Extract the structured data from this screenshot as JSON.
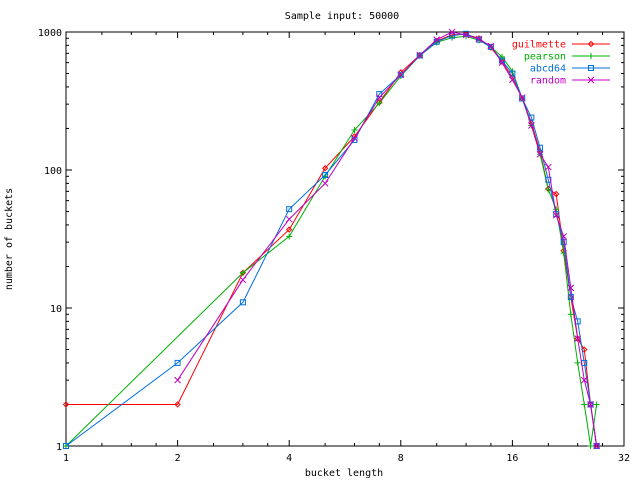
{
  "chart_data": {
    "type": "line",
    "title": "Sample input: 50000",
    "xlabel": "bucket length",
    "ylabel": "number of buckets",
    "xscale": "log2",
    "yscale": "log10",
    "xlim": [
      1,
      32
    ],
    "ylim": [
      1,
      1000
    ],
    "xticks": [
      1,
      2,
      4,
      8,
      16,
      32
    ],
    "xtick_labels": [
      "1",
      "2",
      "4",
      "8",
      "16",
      "32"
    ],
    "yticks": [
      1,
      10,
      100,
      1000
    ],
    "ytick_labels": [
      "1",
      "10",
      "100",
      "1000"
    ],
    "grid": false,
    "legend_position": "top-right",
    "series": [
      {
        "name": "guilmette",
        "color": "#ff0000",
        "marker": "diamond",
        "points": [
          [
            1,
            2
          ],
          [
            2,
            2
          ],
          [
            3,
            18
          ],
          [
            4,
            37
          ],
          [
            5,
            103
          ],
          [
            6,
            175
          ],
          [
            7,
            310
          ],
          [
            8,
            510
          ],
          [
            9,
            680
          ],
          [
            10,
            860
          ],
          [
            11,
            955
          ],
          [
            12,
            960
          ],
          [
            13,
            900
          ],
          [
            14,
            770
          ],
          [
            15,
            610
          ],
          [
            16,
            470
          ],
          [
            17,
            330
          ],
          [
            18,
            220
          ],
          [
            19,
            135
          ],
          [
            20,
            73
          ],
          [
            21,
            67
          ],
          [
            22,
            26
          ],
          [
            23,
            12
          ],
          [
            24,
            6
          ],
          [
            25,
            5
          ],
          [
            26,
            2
          ],
          [
            27,
            1
          ]
        ]
      },
      {
        "name": "pearson",
        "color": "#00b000",
        "marker": "plus",
        "points": [
          [
            1,
            1
          ],
          [
            3,
            18
          ],
          [
            4,
            33
          ],
          [
            5,
            90
          ],
          [
            6,
            195
          ],
          [
            7,
            305
          ],
          [
            8,
            480
          ],
          [
            9,
            675
          ],
          [
            10,
            840
          ],
          [
            11,
            910
          ],
          [
            12,
            930
          ],
          [
            13,
            870
          ],
          [
            14,
            780
          ],
          [
            15,
            660
          ],
          [
            16,
            520
          ],
          [
            17,
            330
          ],
          [
            18,
            210
          ],
          [
            19,
            130
          ],
          [
            20,
            72
          ],
          [
            21,
            52
          ],
          [
            22,
            25
          ],
          [
            23,
            9
          ],
          [
            24,
            4
          ],
          [
            25,
            2
          ],
          [
            26,
            1
          ],
          [
            27,
            2
          ]
        ]
      },
      {
        "name": "abcd64",
        "color": "#0070e0",
        "marker": "square",
        "points": [
          [
            1,
            1
          ],
          [
            2,
            4
          ],
          [
            3,
            11
          ],
          [
            4,
            52
          ],
          [
            5,
            92
          ],
          [
            6,
            165
          ],
          [
            7,
            355
          ],
          [
            8,
            490
          ],
          [
            9,
            675
          ],
          [
            10,
            850
          ],
          [
            11,
            940
          ],
          [
            12,
            970
          ],
          [
            13,
            880
          ],
          [
            14,
            780
          ],
          [
            15,
            620
          ],
          [
            16,
            500
          ],
          [
            17,
            330
          ],
          [
            18,
            240
          ],
          [
            19,
            145
          ],
          [
            20,
            85
          ],
          [
            21,
            48
          ],
          [
            22,
            30
          ],
          [
            23,
            12
          ],
          [
            24,
            8
          ],
          [
            25,
            4
          ],
          [
            26,
            2
          ],
          [
            27,
            1
          ]
        ]
      },
      {
        "name": "random",
        "color": "#c000c0",
        "marker": "cross",
        "points": [
          [
            2,
            3
          ],
          [
            3,
            16
          ],
          [
            4,
            44
          ],
          [
            5,
            80
          ],
          [
            6,
            170
          ],
          [
            7,
            335
          ],
          [
            8,
            490
          ],
          [
            9,
            680
          ],
          [
            10,
            880
          ],
          [
            11,
            1000
          ],
          [
            12,
            950
          ],
          [
            13,
            890
          ],
          [
            14,
            790
          ],
          [
            15,
            600
          ],
          [
            16,
            450
          ],
          [
            17,
            335
          ],
          [
            18,
            210
          ],
          [
            19,
            130
          ],
          [
            20,
            105
          ],
          [
            21,
            47
          ],
          [
            22,
            33
          ],
          [
            23,
            14
          ],
          [
            24,
            6
          ],
          [
            25,
            3
          ],
          [
            26,
            2
          ],
          [
            27,
            1
          ]
        ]
      }
    ]
  }
}
